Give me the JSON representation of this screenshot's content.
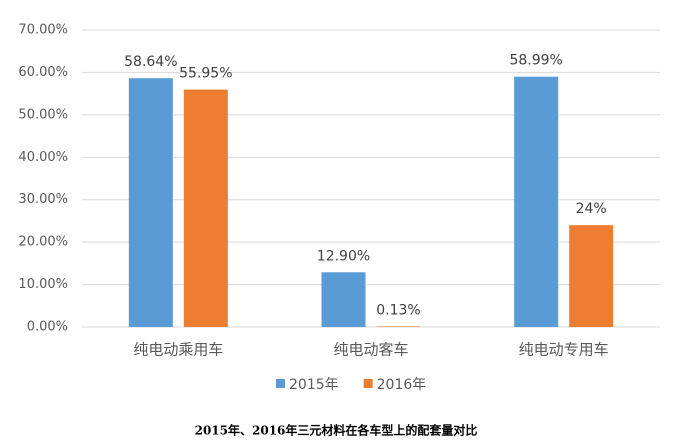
{
  "chart_data": {
    "type": "bar",
    "title": "2015年、2016年三元材料在各车型上的配套量对比",
    "categories": [
      "纯电动乘用车",
      "纯电动客车",
      "纯电动专用车"
    ],
    "series": [
      {
        "name": "2015年",
        "color": "#5b9bd5",
        "values": [
          58.64,
          12.9,
          58.99
        ],
        "value_labels": [
          "58.64%",
          "12.90%",
          "58.99%"
        ]
      },
      {
        "name": "2016年",
        "color": "#ed7d31",
        "values": [
          55.95,
          0.13,
          24
        ],
        "value_labels": [
          "55.95%",
          "0.13%",
          "24%"
        ]
      }
    ],
    "ylim": [
      0,
      70
    ],
    "yticks": [
      {
        "value": 0,
        "label": "0.00%"
      },
      {
        "value": 10,
        "label": "10.00%"
      },
      {
        "value": 20,
        "label": "20.00%"
      },
      {
        "value": 30,
        "label": "30.00%"
      },
      {
        "value": 40,
        "label": "40.00%"
      },
      {
        "value": 50,
        "label": "50.00%"
      },
      {
        "value": 60,
        "label": "60.00%"
      },
      {
        "value": 70,
        "label": "70.00%"
      }
    ],
    "grid": true,
    "legend": "bottom"
  }
}
